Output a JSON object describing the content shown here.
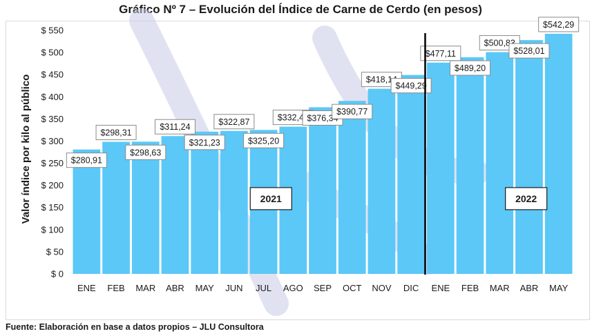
{
  "title": "Gráfico Nº 7 – Evolución del Índice de Carne de Cerdo (en pesos)",
  "source": "Fuente: Elaboración en base a datos propios – JLU Consultora",
  "colors": {
    "bar": "#5bc8f7",
    "label_bg": "#ffffff",
    "label_border": "#8a8a8a",
    "divider": "#000000",
    "watermark": "#c9cbe6"
  },
  "chart_data": {
    "type": "bar",
    "title": "Gráfico Nº 7 – Evolución del Índice de Carne de Cerdo (en pesos)",
    "xlabel": "",
    "ylabel": "Valor índice por kilo al público",
    "ylim": [
      0,
      550
    ],
    "yticks": [
      0,
      50,
      100,
      150,
      200,
      250,
      300,
      350,
      400,
      450,
      500,
      550
    ],
    "ytick_labels": [
      "$ 0",
      "$ 50",
      "$ 100",
      "$ 150",
      "$ 200",
      "$ 250",
      "$ 300",
      "$ 350",
      "$ 400",
      "$ 450",
      "$ 500",
      "$ 550"
    ],
    "categories": [
      "ENE",
      "FEB",
      "MAR",
      "ABR",
      "MAY",
      "JUN",
      "JUL",
      "AGO",
      "SEP",
      "OCT",
      "NOV",
      "DIC",
      "ENE",
      "FEB",
      "MAR",
      "ABR",
      "MAY"
    ],
    "values": [
      280.91,
      298.31,
      298.63,
      311.24,
      321.23,
      322.87,
      325.2,
      332.49,
      376.34,
      390.77,
      418.14,
      449.29,
      477.11,
      489.2,
      500.83,
      528.01,
      542.29
    ],
    "data_labels": [
      "$280,91",
      "$298,31",
      "$298,63",
      "$311,24",
      "$321,23",
      "$322,87",
      "$325,20",
      "$332,49",
      "$376,34",
      "$390,77",
      "$418,14",
      "$449,29",
      "$477,11",
      "$489,20",
      "$500,83",
      "$528,01",
      "$542,29"
    ],
    "label_position": [
      "inside",
      "above",
      "inside",
      "above",
      "inside",
      "above",
      "inside",
      "above",
      "inside",
      "inside",
      "above",
      "inside",
      "above",
      "inside",
      "above",
      "inside",
      "above"
    ],
    "year_labels": [
      {
        "text": "2021",
        "y": 170
      },
      {
        "text": "2022",
        "y": 170
      }
    ],
    "divider_after_index": 11,
    "grid": false,
    "legend": "none"
  }
}
